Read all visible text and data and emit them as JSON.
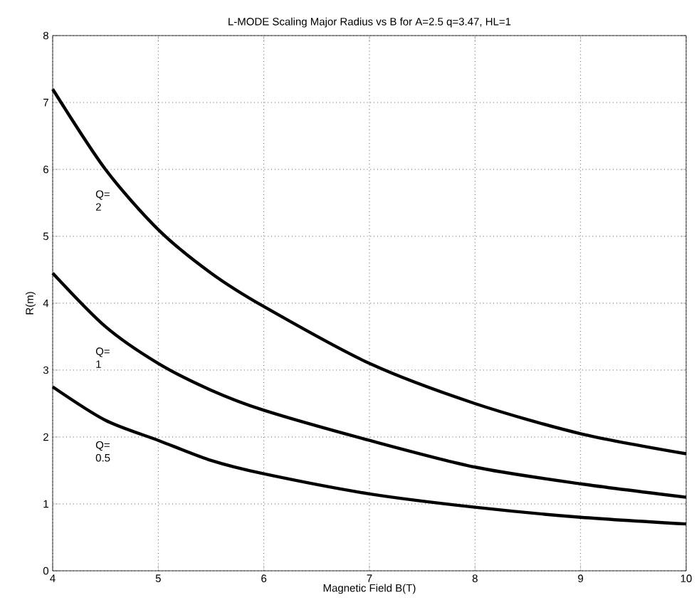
{
  "chart_data": {
    "type": "line",
    "title": "L-MODE Scaling Major Radius vs B for A=2.5 q=3.47, HL=1",
    "xlabel": "Magnetic Field B(T)",
    "ylabel": "R(m)",
    "x": [
      4,
      4.5,
      5,
      5.5,
      6,
      7,
      8,
      9,
      10
    ],
    "series": [
      {
        "name": "Q= 2",
        "color": "#000000",
        "values": [
          7.2,
          6.0,
          5.1,
          4.45,
          3.95,
          3.1,
          2.5,
          2.05,
          1.75
        ]
      },
      {
        "name": "Q= 1",
        "color": "#000000",
        "values": [
          4.45,
          3.65,
          3.1,
          2.7,
          2.4,
          1.95,
          1.55,
          1.3,
          1.1
        ]
      },
      {
        "name": "Q= 0.5",
        "color": "#000000",
        "values": [
          2.75,
          2.25,
          1.95,
          1.65,
          1.45,
          1.15,
          0.95,
          0.8,
          0.7
        ]
      }
    ],
    "xlim": [
      4,
      10
    ],
    "ylim": [
      0,
      8
    ],
    "xticks": [
      4,
      5,
      6,
      7,
      8,
      9,
      10
    ],
    "yticks": [
      0,
      1,
      2,
      3,
      4,
      5,
      6,
      7,
      8
    ],
    "grid": true,
    "marker": "none",
    "line_style": "solid",
    "legend": false
  }
}
